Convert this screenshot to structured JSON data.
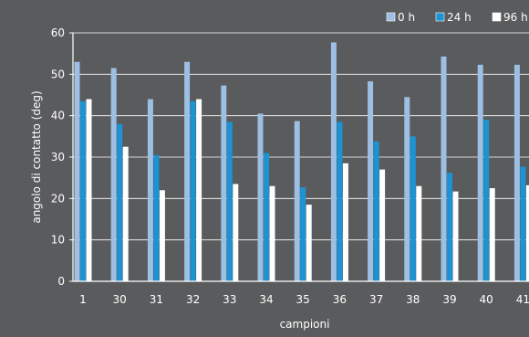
{
  "chart_data": {
    "type": "bar",
    "xlabel": "campioni",
    "ylabel": "angolo di contatto (deg)",
    "ylim": [
      0,
      60
    ],
    "yticks": [
      0,
      10,
      20,
      30,
      40,
      50,
      60
    ],
    "grid": true,
    "legend_position": "top-right",
    "categories": [
      "1",
      "30",
      "31",
      "32",
      "33",
      "34",
      "35",
      "36",
      "37",
      "38",
      "39",
      "40",
      "41"
    ],
    "series": [
      {
        "name": "0 h",
        "color": "#9dbfe3",
        "values": [
          53,
          51.5,
          44,
          53,
          47.3,
          40.5,
          38.7,
          57.7,
          48.3,
          44.5,
          54.3,
          52.3,
          52.3
        ]
      },
      {
        "name": "24 h",
        "color": "#1c93d2",
        "values": [
          43.5,
          38,
          30.5,
          43.5,
          38.5,
          31,
          22.7,
          38.5,
          33.8,
          35,
          26.2,
          39,
          27.7
        ]
      },
      {
        "name": "96 h",
        "color": "#ffffff",
        "values": [
          44,
          32.5,
          22,
          44,
          23.5,
          23,
          18.5,
          28.5,
          27,
          23,
          21.7,
          22.5,
          23.2
        ]
      }
    ]
  }
}
